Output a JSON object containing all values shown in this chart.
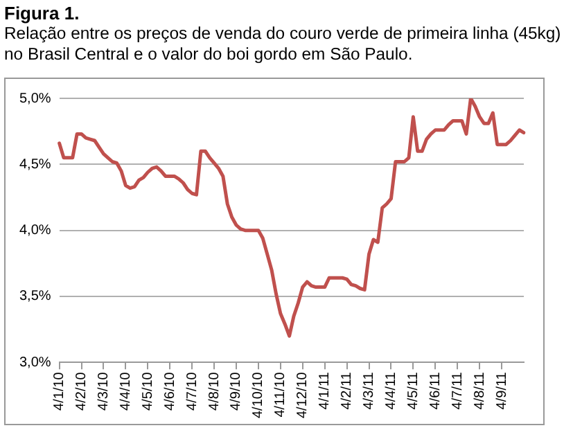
{
  "chart_data": {
    "type": "line",
    "title": "Figura 1.",
    "subtitle": "Relação entre os preços de venda do couro verde de primeira linha (45kg) no Brasil Central e o valor do boi gordo em São Paulo.",
    "categories": [
      "4/1/10",
      null,
      null,
      null,
      null,
      "4/2/10",
      null,
      null,
      null,
      null,
      "4/3/10",
      null,
      null,
      null,
      null,
      "4/4/10",
      null,
      null,
      null,
      null,
      "4/5/10",
      null,
      null,
      null,
      null,
      "4/6/10",
      null,
      null,
      null,
      null,
      "4/7/10",
      null,
      null,
      null,
      null,
      "4/8/10",
      null,
      null,
      null,
      null,
      "4/9/10",
      null,
      null,
      null,
      null,
      "4/10/10",
      null,
      null,
      null,
      null,
      "4/11/10",
      null,
      null,
      null,
      null,
      "4/12/10",
      null,
      null,
      null,
      null,
      "4/1/11",
      null,
      null,
      null,
      null,
      "4/2/11",
      null,
      null,
      null,
      null,
      "4/3/11",
      null,
      null,
      null,
      null,
      "4/4/11",
      null,
      null,
      null,
      null,
      "4/5/11",
      null,
      null,
      null,
      null,
      "4/6/11",
      null,
      null,
      null,
      null,
      "4/7/11",
      null,
      null,
      null,
      null,
      "4/8/11",
      null,
      null,
      null,
      null,
      "4/9/11",
      null,
      null,
      null,
      null,
      null
    ],
    "series": [
      {
        "color": "#c0504d",
        "values": [
          4.66,
          4.55,
          4.55,
          4.55,
          4.73,
          4.73,
          4.7,
          4.69,
          4.68,
          4.63,
          4.58,
          4.55,
          4.52,
          4.51,
          4.45,
          4.34,
          4.32,
          4.33,
          4.38,
          4.4,
          4.44,
          4.47,
          4.48,
          4.45,
          4.41,
          4.41,
          4.41,
          4.39,
          4.36,
          4.31,
          4.28,
          4.27,
          4.6,
          4.6,
          4.55,
          4.51,
          4.47,
          4.41,
          4.2,
          4.1,
          4.04,
          4.01,
          4.0,
          4.0,
          4.0,
          4.0,
          3.94,
          3.82,
          3.7,
          3.52,
          3.37,
          3.29,
          3.2,
          3.35,
          3.45,
          3.57,
          3.61,
          3.58,
          3.57,
          3.57,
          3.57,
          3.64,
          3.64,
          3.64,
          3.64,
          3.63,
          3.59,
          3.58,
          3.56,
          3.55,
          3.82,
          3.93,
          3.91,
          4.17,
          4.2,
          4.24,
          4.52,
          4.52,
          4.52,
          4.55,
          4.86,
          4.6,
          4.6,
          4.69,
          4.73,
          4.76,
          4.76,
          4.76,
          4.8,
          4.83,
          4.83,
          4.83,
          4.73,
          5.0,
          4.94,
          4.86,
          4.81,
          4.81,
          4.89,
          4.65,
          4.65,
          4.65,
          4.68,
          4.72,
          4.76,
          4.74
        ]
      }
    ],
    "ylim": [
      3.0,
      5.0
    ],
    "yticks": [
      {
        "value": 3.0,
        "label": "3,0%"
      },
      {
        "value": 3.5,
        "label": "3,5%"
      },
      {
        "value": 4.0,
        "label": "4,0%"
      },
      {
        "value": 4.5,
        "label": "4,5%"
      },
      {
        "value": 5.0,
        "label": "5,0%"
      }
    ],
    "grid": "y"
  }
}
